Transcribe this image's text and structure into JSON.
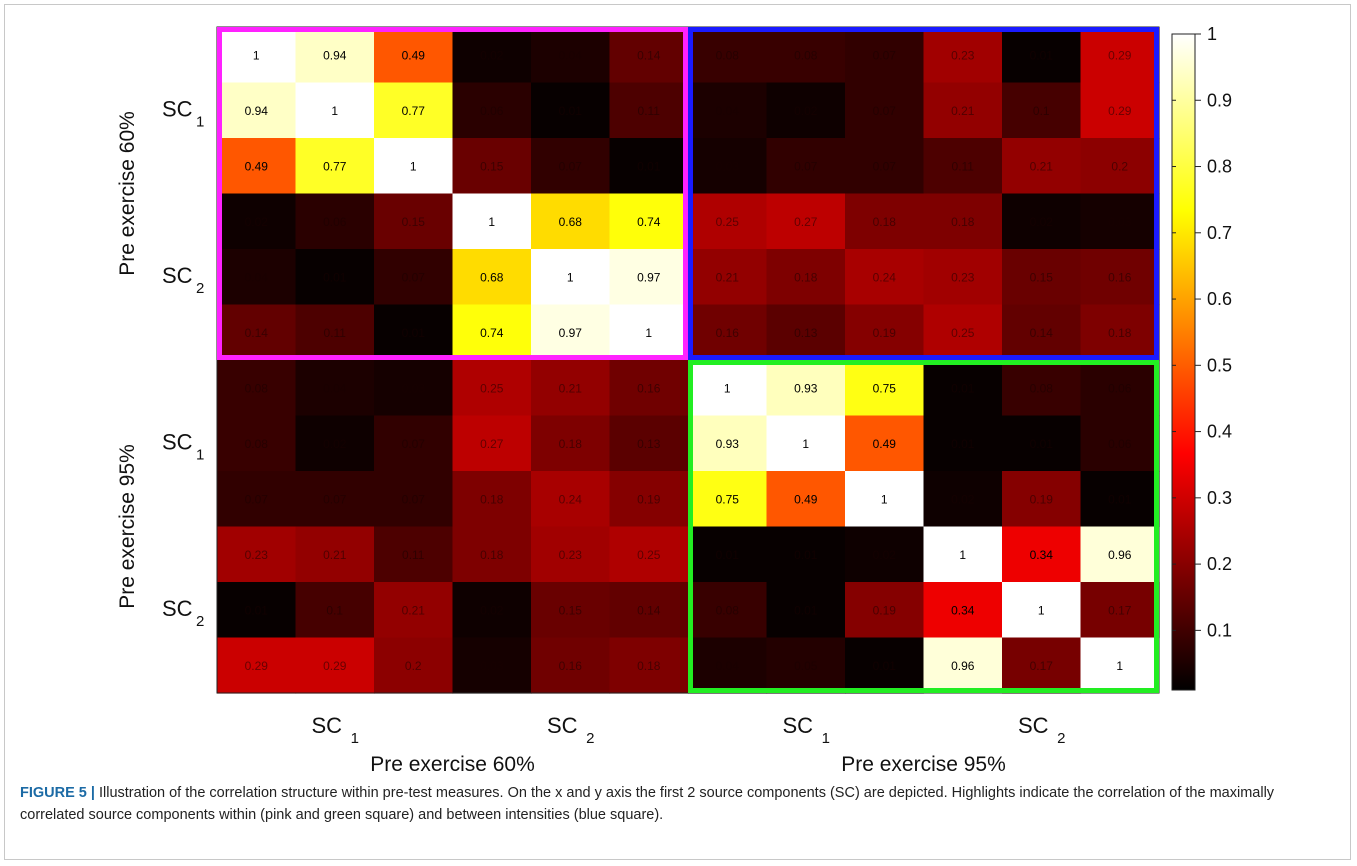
{
  "chart_data": {
    "type": "heatmap",
    "matrix": [
      [
        1,
        0.94,
        0.49,
        0.02,
        0.04,
        0.14,
        0.08,
        0.08,
        0.07,
        0.23,
        0.01,
        0.29
      ],
      [
        0.94,
        1,
        0.77,
        0.06,
        0.01,
        0.11,
        0.04,
        0.02,
        0.07,
        0.21,
        0.1,
        0.29
      ],
      [
        0.49,
        0.77,
        1,
        0.15,
        0.07,
        0.01,
        0.03,
        0.07,
        0.07,
        0.11,
        0.21,
        0.2
      ],
      [
        0.02,
        0.06,
        0.15,
        1,
        0.68,
        0.74,
        0.25,
        0.27,
        0.18,
        0.18,
        0.02,
        0.03
      ],
      [
        0.04,
        0.01,
        0.07,
        0.68,
        1,
        0.97,
        0.21,
        0.18,
        0.24,
        0.23,
        0.15,
        0.16
      ],
      [
        0.14,
        0.11,
        0.01,
        0.74,
        0.97,
        1,
        0.16,
        0.13,
        0.19,
        0.25,
        0.14,
        0.18
      ],
      [
        0.08,
        0.04,
        0.03,
        0.25,
        0.21,
        0.16,
        1,
        0.93,
        0.75,
        0.01,
        0.08,
        0.06
      ],
      [
        0.08,
        0.02,
        0.07,
        0.27,
        0.18,
        0.13,
        0.93,
        1,
        0.49,
        0.01,
        0.01,
        0.06
      ],
      [
        0.07,
        0.07,
        0.07,
        0.18,
        0.24,
        0.19,
        0.75,
        0.49,
        1,
        0.02,
        0.19,
        0.01
      ],
      [
        0.23,
        0.21,
        0.11,
        0.18,
        0.23,
        0.25,
        0.01,
        0.01,
        0.02,
        1,
        0.34,
        0.96
      ],
      [
        0.01,
        0.1,
        0.21,
        0.02,
        0.15,
        0.14,
        0.08,
        0.01,
        0.19,
        0.34,
        1,
        0.17
      ],
      [
        0.29,
        0.29,
        0.2,
        0.03,
        0.16,
        0.18,
        0.04,
        0.05,
        0.01,
        0.96,
        0.17,
        1
      ]
    ],
    "colormap": "hot",
    "clim": [
      0,
      1
    ],
    "colorbar_ticks": [
      "0.1",
      "0.2",
      "0.3",
      "0.4",
      "0.5",
      "0.6",
      "0.7",
      "0.8",
      "0.9",
      "1"
    ],
    "x_group_labels": [
      "SC",
      "SC",
      "SC",
      "SC"
    ],
    "x_group_subscripts": [
      "1",
      "2",
      "1",
      "2"
    ],
    "y_group_labels": [
      "SC",
      "SC",
      "SC",
      "SC"
    ],
    "y_group_subscripts": [
      "1",
      "2",
      "1",
      "2"
    ],
    "x_titles": [
      "Pre exercise 60%",
      "Pre exercise 95%"
    ],
    "y_titles": [
      "Pre exercise 60%",
      "Pre exercise 95%"
    ],
    "highlights": [
      {
        "rows": [
          0,
          5
        ],
        "cols": [
          0,
          5
        ],
        "color": "#ff22ff"
      },
      {
        "rows": [
          0,
          5
        ],
        "cols": [
          6,
          11
        ],
        "color": "#1a1aff"
      },
      {
        "rows": [
          6,
          11
        ],
        "cols": [
          6,
          11
        ],
        "color": "#22ee22"
      }
    ]
  },
  "caption": {
    "label": "FIGURE 5 |",
    "text": " Illustration of the correlation structure within pre-test measures. On the x and y axis the first 2 source components (SC) are depicted. Highlights indicate the correlation of the maximally correlated source components within (pink and green square) and between intensities (blue square)."
  }
}
